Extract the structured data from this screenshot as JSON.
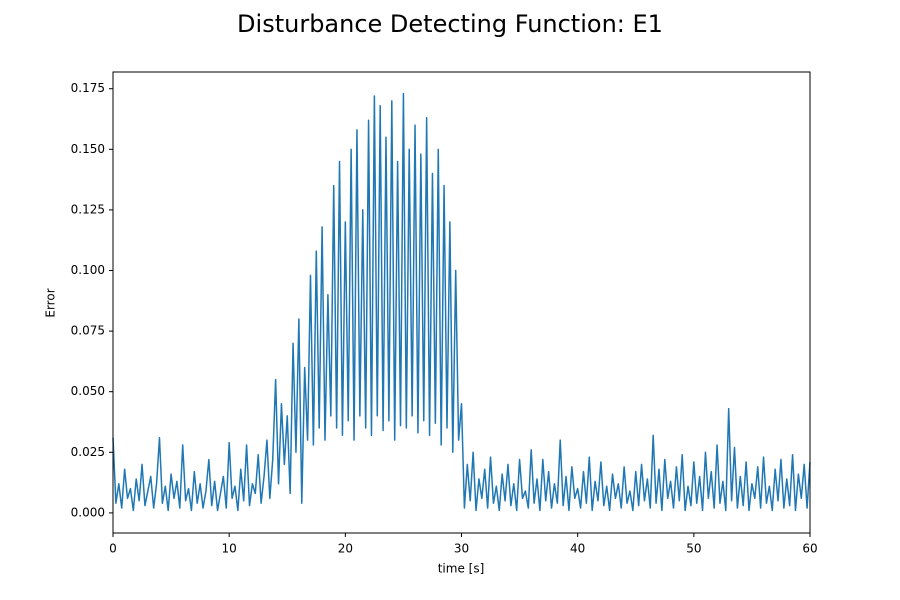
{
  "chart_data": {
    "type": "line",
    "title": "Disturbance Detecting Function: E1",
    "xlabel": "time [s]",
    "ylabel": "Error",
    "xlim": [
      0,
      60
    ],
    "ylim": [
      -0.0083,
      0.1819
    ],
    "xticks": [
      0,
      10,
      20,
      30,
      40,
      50,
      60
    ],
    "yticks": [
      {
        "value": 0,
        "label": "0.000"
      },
      0.025,
      {
        "value": 0.05,
        "label": "0.050"
      },
      0.075,
      {
        "value": 0.1,
        "label": "0.100"
      },
      0.125,
      {
        "value": 0.15,
        "label": "0.150"
      },
      0.175
    ],
    "grid": false,
    "x": [
      0,
      0.25,
      0.5,
      0.75,
      1,
      1.25,
      1.5,
      1.75,
      2,
      2.25,
      2.5,
      2.75,
      3,
      3.25,
      3.5,
      3.75,
      4,
      4.25,
      4.5,
      4.75,
      5,
      5.25,
      5.5,
      5.75,
      6,
      6.25,
      6.5,
      6.75,
      7,
      7.25,
      7.5,
      7.75,
      8,
      8.25,
      8.5,
      8.75,
      9,
      9.25,
      9.5,
      9.75,
      10,
      10.25,
      10.5,
      10.75,
      11,
      11.25,
      11.5,
      11.75,
      12,
      12.25,
      12.5,
      12.75,
      13,
      13.25,
      13.5,
      13.75,
      14,
      14.25,
      14.5,
      14.75,
      15,
      15.25,
      15.5,
      15.75,
      16,
      16.25,
      16.5,
      16.75,
      17,
      17.25,
      17.5,
      17.75,
      18,
      18.25,
      18.5,
      18.75,
      19,
      19.25,
      19.5,
      19.75,
      20,
      20.25,
      20.5,
      20.75,
      21,
      21.25,
      21.5,
      21.75,
      22,
      22.25,
      22.5,
      22.75,
      23,
      23.25,
      23.5,
      23.75,
      24,
      24.25,
      24.5,
      24.75,
      25,
      25.25,
      25.5,
      25.75,
      26,
      26.25,
      26.5,
      26.75,
      27,
      27.25,
      27.5,
      27.75,
      28,
      28.25,
      28.5,
      28.75,
      29,
      29.25,
      29.5,
      29.75,
      30,
      30.25,
      30.5,
      30.75,
      31,
      31.25,
      31.5,
      31.75,
      32,
      32.25,
      32.5,
      32.75,
      33,
      33.25,
      33.5,
      33.75,
      34,
      34.25,
      34.5,
      34.75,
      35,
      35.25,
      35.5,
      35.75,
      36,
      36.25,
      36.5,
      36.75,
      37,
      37.25,
      37.5,
      37.75,
      38,
      38.25,
      38.5,
      38.75,
      39,
      39.25,
      39.5,
      39.75,
      40,
      40.25,
      40.5,
      40.75,
      41,
      41.25,
      41.5,
      41.75,
      42,
      42.25,
      42.5,
      42.75,
      43,
      43.25,
      43.5,
      43.75,
      44,
      44.25,
      44.5,
      44.75,
      45,
      45.25,
      45.5,
      45.75,
      46,
      46.25,
      46.5,
      46.75,
      47,
      47.25,
      47.5,
      47.75,
      48,
      48.25,
      48.5,
      48.75,
      49,
      49.25,
      49.5,
      49.75,
      50,
      50.25,
      50.5,
      50.75,
      51,
      51.25,
      51.5,
      51.75,
      52,
      52.25,
      52.5,
      52.75,
      53,
      53.25,
      53.5,
      53.75,
      54,
      54.25,
      54.5,
      54.75,
      55,
      55.25,
      55.5,
      55.75,
      56,
      56.25,
      56.5,
      56.75,
      57,
      57.25,
      57.5,
      57.75,
      58,
      58.25,
      58.5,
      58.75,
      59,
      59.25,
      59.5,
      59.75,
      60
    ],
    "series": [
      {
        "name": "E1",
        "color": "#1f77b4",
        "values": [
          0.031,
          0.004,
          0.012,
          0.002,
          0.018,
          0.006,
          0.01,
          0.001,
          0.014,
          0.005,
          0.02,
          0.003,
          0.009,
          0.015,
          0.002,
          0.012,
          0.031,
          0.004,
          0.011,
          0.001,
          0.016,
          0.006,
          0.013,
          0.002,
          0.028,
          0.005,
          0.01,
          0.001,
          0.017,
          0.004,
          0.012,
          0.002,
          0.009,
          0.022,
          0.003,
          0.013,
          0.001,
          0.008,
          0.015,
          0.002,
          0.029,
          0.006,
          0.011,
          0.001,
          0.018,
          0.005,
          0.028,
          0.003,
          0.012,
          0.008,
          0.024,
          0.004,
          0.015,
          0.03,
          0.006,
          0.022,
          0.055,
          0.012,
          0.045,
          0.02,
          0.04,
          0.008,
          0.07,
          0.025,
          0.08,
          0.004,
          0.06,
          0.03,
          0.098,
          0.028,
          0.108,
          0.035,
          0.118,
          0.03,
          0.09,
          0.04,
          0.135,
          0.035,
          0.145,
          0.032,
          0.12,
          0.038,
          0.15,
          0.03,
          0.158,
          0.04,
          0.125,
          0.035,
          0.162,
          0.032,
          0.172,
          0.04,
          0.168,
          0.034,
          0.155,
          0.038,
          0.17,
          0.03,
          0.145,
          0.036,
          0.173,
          0.035,
          0.15,
          0.04,
          0.16,
          0.033,
          0.148,
          0.038,
          0.163,
          0.032,
          0.14,
          0.037,
          0.15,
          0.028,
          0.135,
          0.035,
          0.12,
          0.025,
          0.1,
          0.03,
          0.045,
          0.002,
          0.02,
          0.005,
          0.025,
          0.001,
          0.014,
          0.006,
          0.018,
          0.002,
          0.023,
          0.004,
          0.011,
          0.001,
          0.016,
          0.005,
          0.02,
          0.003,
          0.012,
          0.001,
          0.022,
          0.006,
          0.009,
          0.002,
          0.026,
          0.004,
          0.014,
          0.001,
          0.022,
          0.005,
          0.017,
          0.002,
          0.012,
          0.004,
          0.03,
          0.003,
          0.015,
          0.001,
          0.019,
          0.006,
          0.01,
          0.002,
          0.017,
          0.004,
          0.023,
          0.001,
          0.013,
          0.005,
          0.021,
          0.003,
          0.011,
          0.001,
          0.016,
          0.006,
          0.012,
          0.002,
          0.019,
          0.004,
          0.009,
          0.001,
          0.017,
          0.003,
          0.02,
          0.005,
          0.014,
          0.002,
          0.032,
          0.004,
          0.018,
          0.001,
          0.022,
          0.006,
          0.013,
          0.002,
          0.019,
          0.005,
          0.024,
          0.001,
          0.011,
          0.003,
          0.021,
          0.004,
          0.015,
          0.001,
          0.025,
          0.006,
          0.017,
          0.002,
          0.028,
          0.004,
          0.013,
          0.001,
          0.043,
          0.005,
          0.027,
          0.002,
          0.015,
          0.003,
          0.021,
          0.001,
          0.012,
          0.006,
          0.019,
          0.002,
          0.023,
          0.004,
          0.011,
          0.001,
          0.018,
          0.005,
          0.022,
          0.002,
          0.014,
          0.003,
          0.024,
          0.001,
          0.016,
          0.006,
          0.02,
          0.002,
          0.021
        ]
      }
    ]
  }
}
